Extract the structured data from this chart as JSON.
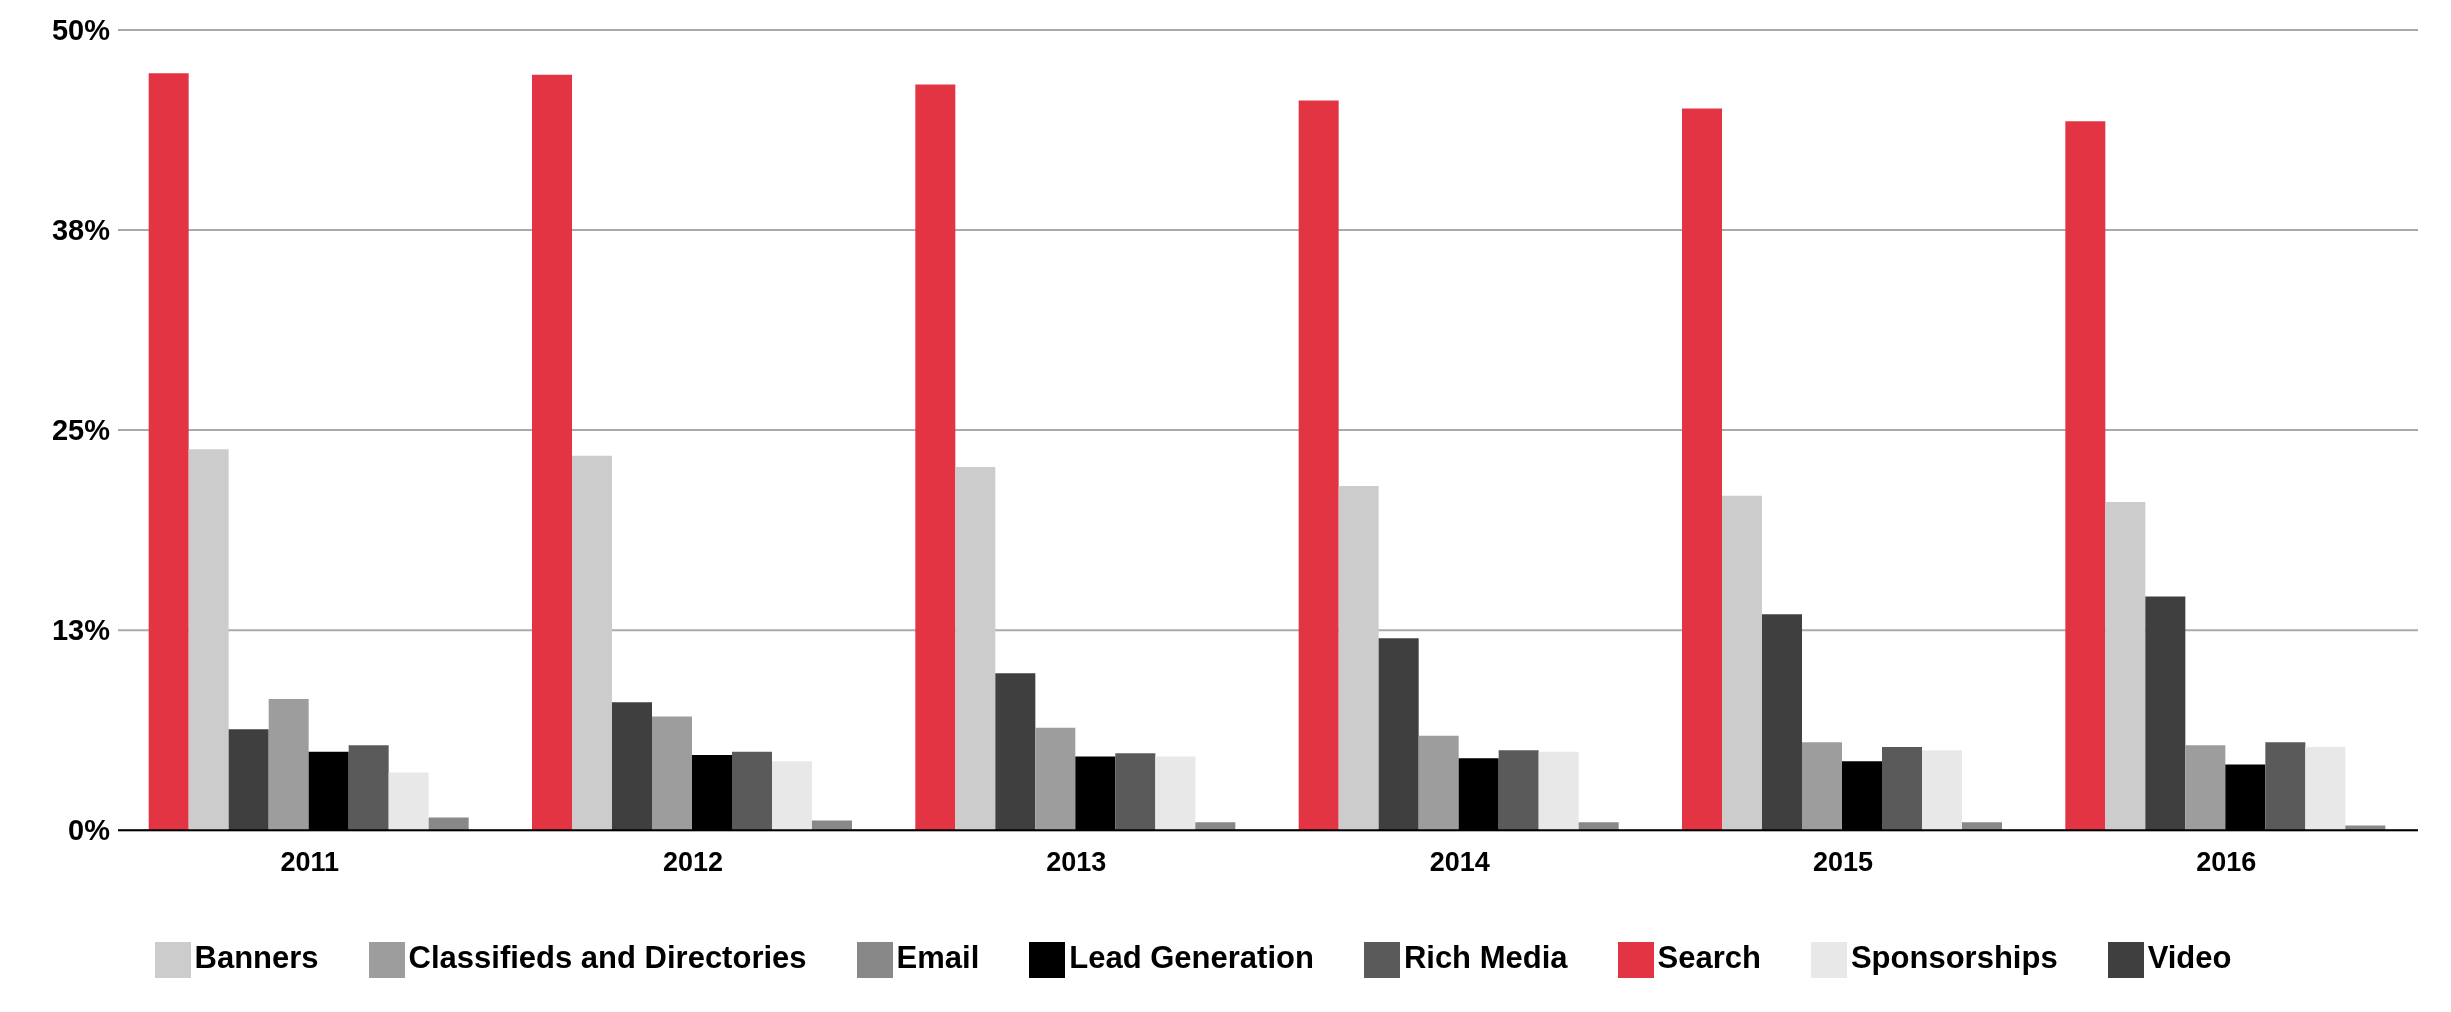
{
  "chart_data": {
    "type": "bar",
    "categories": [
      "2011",
      "2012",
      "2013",
      "2014",
      "2015",
      "2016"
    ],
    "series": [
      {
        "name": "Search",
        "color": "#e33444",
        "values": [
          47.3,
          47.2,
          46.6,
          45.6,
          45.1,
          44.3
        ]
      },
      {
        "name": "Banners",
        "color": "#cccccc",
        "values": [
          23.8,
          23.4,
          22.7,
          21.5,
          20.9,
          20.5
        ]
      },
      {
        "name": "Video",
        "color": "#3f3f3f",
        "values": [
          6.3,
          8.0,
          9.8,
          12.0,
          13.5,
          14.6
        ]
      },
      {
        "name": "Classifieds and Directories",
        "color": "#9d9d9d",
        "values": [
          8.2,
          7.1,
          6.4,
          5.9,
          5.5,
          5.3
        ]
      },
      {
        "name": "Lead Generation",
        "color": "#000000",
        "values": [
          4.9,
          4.7,
          4.6,
          4.5,
          4.3,
          4.1
        ]
      },
      {
        "name": "Rich Media",
        "color": "#5a5a5a",
        "values": [
          5.3,
          4.9,
          4.8,
          5.0,
          5.2,
          5.5
        ]
      },
      {
        "name": "Sponsorships",
        "color": "#e8e8e8",
        "values": [
          3.6,
          4.3,
          4.6,
          4.9,
          5.0,
          5.2
        ]
      },
      {
        "name": "Email",
        "color": "#888888",
        "values": [
          0.8,
          0.6,
          0.5,
          0.5,
          0.5,
          0.3
        ]
      }
    ],
    "ylim": [
      0,
      50
    ],
    "yticks": [
      {
        "value": 0,
        "label": "0%"
      },
      {
        "value": 12.5,
        "label": "13%"
      },
      {
        "value": 25,
        "label": "25%"
      },
      {
        "value": 37.5,
        "label": "38%"
      },
      {
        "value": 50,
        "label": "50%"
      }
    ],
    "grid": "y",
    "legend": "bottom"
  }
}
